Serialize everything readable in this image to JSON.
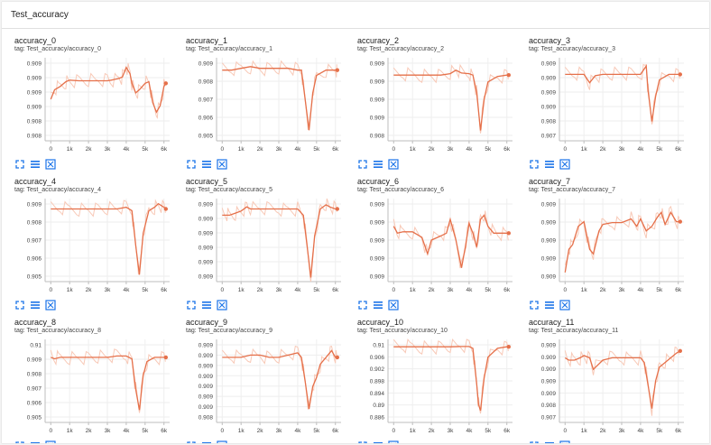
{
  "section": {
    "title": "Test_accuracy"
  },
  "colors": {
    "line": "#e5704a",
    "smooth_raw": "#f8c9b7",
    "axis": "#bdbdbd",
    "grid": "#eeeeee",
    "icon": "#1a73e8"
  },
  "x_ticks": [
    "0",
    "1k",
    "2k",
    "3k",
    "4k",
    "5k",
    "6k"
  ],
  "charts": [
    {
      "title": "accuracy_0",
      "tag": "tag: Test_accuracy/accuracy_0",
      "y_ticks": [
        "0.909",
        "0.909",
        "0.909",
        "0.909",
        "0.908",
        "0.908"
      ],
      "x_ticks": [
        "0",
        "1k",
        "2k",
        "3k",
        "4k",
        "5k",
        "6k"
      ],
      "chart_data": {
        "type": "line",
        "x": [
          0,
          200,
          500,
          800,
          1000,
          1500,
          2000,
          2500,
          3000,
          3200,
          3600,
          3800,
          4000,
          4200,
          4300,
          4500,
          4700,
          5000,
          5200,
          5400,
          5600,
          5800,
          6000,
          6100
        ],
        "y": [
          0.9085,
          0.9088,
          0.9089,
          0.90905,
          0.9091,
          0.90908,
          0.90908,
          0.90908,
          0.90908,
          0.9091,
          0.90915,
          0.9092,
          0.9095,
          0.9093,
          0.909,
          0.9087,
          0.9088,
          0.909,
          0.90905,
          0.9084,
          0.9081,
          0.9083,
          0.9089,
          0.909
        ],
        "ylim": [
          0.9072,
          0.9098
        ]
      }
    },
    {
      "title": "accuracy_1",
      "tag": "tag: Test_accuracy/accuracy_1",
      "y_ticks": [
        "0.909",
        "0.908",
        "0.907",
        "0.906",
        "0.905"
      ],
      "x_ticks": [
        "0",
        "1k",
        "2k",
        "3k",
        "4k",
        "5k",
        "6k"
      ],
      "chart_data": {
        "type": "line",
        "x": [
          0,
          500,
          1000,
          1500,
          2000,
          2500,
          3000,
          3500,
          4000,
          4200,
          4400,
          4600,
          4800,
          5000,
          5500,
          6000,
          6100
        ],
        "y": [
          0.9085,
          0.9085,
          0.9086,
          0.9087,
          0.9086,
          0.9086,
          0.9086,
          0.9086,
          0.9085,
          0.9085,
          0.9068,
          0.9051,
          0.9072,
          0.9082,
          0.9085,
          0.9085,
          0.9085
        ],
        "ylim": [
          0.9045,
          0.9092
        ]
      }
    },
    {
      "title": "accuracy_2",
      "tag": "tag: Test_accuracy/accuracy_2",
      "y_ticks": [
        "0.909",
        "0.909",
        "0.909",
        "0.909",
        "0.908"
      ],
      "x_ticks": [
        "0",
        "1k",
        "2k",
        "3k",
        "4k",
        "5k",
        "6k"
      ],
      "chart_data": {
        "type": "line",
        "x": [
          0,
          500,
          1000,
          1500,
          2000,
          2500,
          3000,
          3300,
          3600,
          4000,
          4200,
          4400,
          4600,
          4800,
          5000,
          5500,
          6000,
          6100
        ],
        "y": [
          0.90895,
          0.90895,
          0.90895,
          0.90895,
          0.90895,
          0.90895,
          0.90897,
          0.90902,
          0.90898,
          0.90897,
          0.90895,
          0.9087,
          0.90815,
          0.9086,
          0.90885,
          0.90893,
          0.90895,
          0.90895
        ],
        "ylim": [
          0.908,
          0.9092
        ]
      }
    },
    {
      "title": "accuracy_3",
      "tag": "tag: Test_accuracy/accuracy_3",
      "y_ticks": [
        "0.909",
        "0.909",
        "0.909",
        "0.909",
        "0.908",
        "0.907"
      ],
      "x_ticks": [
        "0",
        "1k",
        "2k",
        "3k",
        "4k",
        "5k",
        "6k"
      ],
      "chart_data": {
        "type": "line",
        "x": [
          0,
          500,
          1000,
          1300,
          1600,
          2000,
          2500,
          3000,
          3500,
          4000,
          4300,
          4400,
          4600,
          4800,
          5000,
          5500,
          6000,
          6100
        ],
        "y": [
          0.909,
          0.909,
          0.909,
          0.9087,
          0.90895,
          0.909,
          0.909,
          0.909,
          0.909,
          0.909,
          0.9093,
          0.9084,
          0.9073,
          0.9082,
          0.9088,
          0.909,
          0.909,
          0.909
        ],
        "ylim": [
          0.9066,
          0.9096
        ]
      }
    },
    {
      "title": "accuracy_4",
      "tag": "tag: Test_accuracy/accuracy_4",
      "y_ticks": [
        "0.909",
        "0.908",
        "0.907",
        "0.906",
        "0.905"
      ],
      "x_ticks": [
        "0",
        "1k",
        "2k",
        "3k",
        "4k",
        "5k",
        "6k"
      ],
      "chart_data": {
        "type": "line",
        "x": [
          0,
          500,
          1000,
          1500,
          2000,
          2500,
          3000,
          3500,
          4000,
          4300,
          4500,
          4700,
          4900,
          5200,
          5500,
          5700,
          6000,
          6100
        ],
        "y": [
          0.9086,
          0.9086,
          0.9086,
          0.9086,
          0.9086,
          0.9086,
          0.9086,
          0.9086,
          0.9087,
          0.9085,
          0.9065,
          0.9048,
          0.9072,
          0.9085,
          0.9087,
          0.9089,
          0.9087,
          0.9086
        ],
        "ylim": [
          0.9044,
          0.9092
        ]
      }
    },
    {
      "title": "accuracy_5",
      "tag": "tag: Test_accuracy/accuracy_5",
      "y_ticks": [
        "0.909",
        "0.909",
        "0.909",
        "0.909",
        "0.909",
        "0.909"
      ],
      "x_ticks": [
        "0",
        "1k",
        "2k",
        "3k",
        "4k",
        "5k",
        "6k"
      ],
      "chart_data": {
        "type": "line",
        "x": [
          0,
          200,
          400,
          700,
          1000,
          1300,
          1500,
          2000,
          2500,
          3000,
          3500,
          4000,
          4300,
          4500,
          4700,
          4900,
          5200,
          5500,
          5700,
          6000,
          6100
        ],
        "y": [
          0.909,
          0.909,
          0.909,
          0.9091,
          0.9092,
          0.9094,
          0.9093,
          0.9093,
          0.9093,
          0.9093,
          0.9093,
          0.9093,
          0.909,
          0.9075,
          0.906,
          0.908,
          0.9093,
          0.9095,
          0.9094,
          0.9093,
          0.9093
        ],
        "ylim": [
          0.9058,
          0.9098
        ]
      }
    },
    {
      "title": "accuracy_6",
      "tag": "tag: Test_accuracy/accuracy_6",
      "y_ticks": [
        "0.909",
        "0.909",
        "0.909",
        "0.909",
        "0.909"
      ],
      "x_ticks": [
        "0",
        "1k",
        "2k",
        "3k",
        "4k",
        "5k",
        "6k"
      ],
      "chart_data": {
        "type": "line",
        "x": [
          0,
          200,
          500,
          1000,
          1500,
          1800,
          2000,
          2500,
          2800,
          3000,
          3300,
          3600,
          3800,
          4000,
          4200,
          4400,
          4600,
          4800,
          5000,
          5300,
          5600,
          6000,
          6100
        ],
        "y": [
          0.9091,
          0.90905,
          0.90906,
          0.90906,
          0.90902,
          0.9089,
          0.909,
          0.90903,
          0.90905,
          0.90915,
          0.909,
          0.9088,
          0.90895,
          0.90912,
          0.90905,
          0.90895,
          0.90915,
          0.90918,
          0.9091,
          0.90905,
          0.90905,
          0.90905,
          0.90905
        ],
        "ylim": [
          0.9087,
          0.9093
        ]
      }
    },
    {
      "title": "accuracy_7",
      "tag": "tag: Test_accuracy/accuracy_7",
      "y_ticks": [
        "0.909",
        "0.909",
        "0.909",
        "0.909",
        "0.909"
      ],
      "x_ticks": [
        "0",
        "1k",
        "2k",
        "3k",
        "4k",
        "5k",
        "6k"
      ],
      "chart_data": {
        "type": "line",
        "x": [
          0,
          200,
          400,
          700,
          1000,
          1300,
          1500,
          1800,
          2000,
          2500,
          3000,
          3500,
          3800,
          4000,
          4300,
          4600,
          4900,
          5100,
          5300,
          5600,
          5900,
          6100
        ],
        "y": [
          0.9086,
          0.90885,
          0.9089,
          0.9091,
          0.90915,
          0.90885,
          0.9088,
          0.90905,
          0.90912,
          0.90914,
          0.90914,
          0.90918,
          0.9091,
          0.90918,
          0.90905,
          0.9091,
          0.9092,
          0.90925,
          0.90912,
          0.90925,
          0.90915,
          0.90915
        ],
        "ylim": [
          0.9085,
          0.9094
        ]
      }
    },
    {
      "title": "accuracy_8",
      "tag": "tag: Test_accuracy/accuracy_8",
      "y_ticks": [
        "0.91",
        "0.909",
        "0.908",
        "0.907",
        "0.906",
        "0.905"
      ],
      "x_ticks": [
        "0",
        "1k",
        "2k",
        "3k",
        "4k",
        "5k",
        "6k"
      ],
      "chart_data": {
        "type": "line",
        "x": [
          0,
          200,
          500,
          1000,
          1500,
          2000,
          2500,
          3000,
          3500,
          4000,
          4300,
          4500,
          4700,
          4900,
          5100,
          5500,
          6000,
          6100
        ],
        "y": [
          0.9091,
          0.909,
          0.9091,
          0.9091,
          0.9091,
          0.9091,
          0.9091,
          0.9091,
          0.9092,
          0.9092,
          0.909,
          0.9068,
          0.9053,
          0.9078,
          0.9088,
          0.9091,
          0.9091,
          0.9091
        ],
        "ylim": [
          0.9044,
          0.9104
        ]
      }
    },
    {
      "title": "accuracy_9",
      "tag": "tag: Test_accuracy/accuracy_9",
      "y_ticks": [
        "0.909",
        "0.909",
        "0.909",
        "0.909",
        "0.909",
        "0.909",
        "0.909",
        "0.908"
      ],
      "x_ticks": [
        "0",
        "1k",
        "2k",
        "3k",
        "4k",
        "5k",
        "6k"
      ],
      "chart_data": {
        "type": "line",
        "x": [
          0,
          500,
          1000,
          1500,
          2000,
          2500,
          3000,
          3500,
          4000,
          4200,
          4400,
          4600,
          4800,
          5000,
          5200,
          5500,
          5800,
          6000,
          6100
        ],
        "y": [
          0.9091,
          0.9091,
          0.9091,
          0.9092,
          0.9092,
          0.9091,
          0.9091,
          0.9092,
          0.9093,
          0.9091,
          0.908,
          0.9068,
          0.9078,
          0.9082,
          0.9088,
          0.9091,
          0.9094,
          0.9091,
          0.9091
        ],
        "ylim": [
          0.9062,
          0.9099
        ]
      }
    },
    {
      "title": "accuracy_10",
      "tag": "tag: Test_accuracy/accuracy_10",
      "y_ticks": [
        "0.91",
        "0.906",
        "0.902",
        "0.898",
        "0.894",
        "0.89",
        "0.886"
      ],
      "x_ticks": [
        "0",
        "1k",
        "2k",
        "3k",
        "4k",
        "5k",
        "6k"
      ],
      "chart_data": {
        "type": "line",
        "x": [
          0,
          500,
          1000,
          1500,
          2000,
          2500,
          3000,
          3500,
          4000,
          4200,
          4400,
          4500,
          4600,
          4800,
          5000,
          5500,
          6000,
          6100
        ],
        "y": [
          0.9095,
          0.9095,
          0.9095,
          0.9095,
          0.9095,
          0.9095,
          0.9095,
          0.9096,
          0.9096,
          0.909,
          0.897,
          0.89,
          0.888,
          0.899,
          0.906,
          0.909,
          0.9095,
          0.9095
        ],
        "ylim": [
          0.884,
          0.912
        ]
      }
    },
    {
      "title": "accuracy_11",
      "tag": "tag: Test_accuracy/accuracy_11",
      "y_ticks": [
        "0.909",
        "0.909",
        "0.909",
        "0.909",
        "0.909",
        "0.908",
        "0.907"
      ],
      "x_ticks": [
        "0",
        "1k",
        "2k",
        "3k",
        "4k",
        "5k",
        "6k"
      ],
      "chart_data": {
        "type": "line",
        "x": [
          0,
          200,
          500,
          800,
          1000,
          1300,
          1500,
          2000,
          2500,
          3000,
          3500,
          4000,
          4200,
          4400,
          4600,
          4800,
          5000,
          5300,
          5600,
          5900,
          6100
        ],
        "y": [
          0.909,
          0.9089,
          0.9089,
          0.909,
          0.9091,
          0.909,
          0.9085,
          0.9089,
          0.909,
          0.909,
          0.909,
          0.909,
          0.9088,
          0.9078,
          0.9068,
          0.908,
          0.9086,
          0.9088,
          0.909,
          0.9092,
          0.9093
        ],
        "ylim": [
          0.9062,
          0.9098
        ]
      }
    }
  ]
}
